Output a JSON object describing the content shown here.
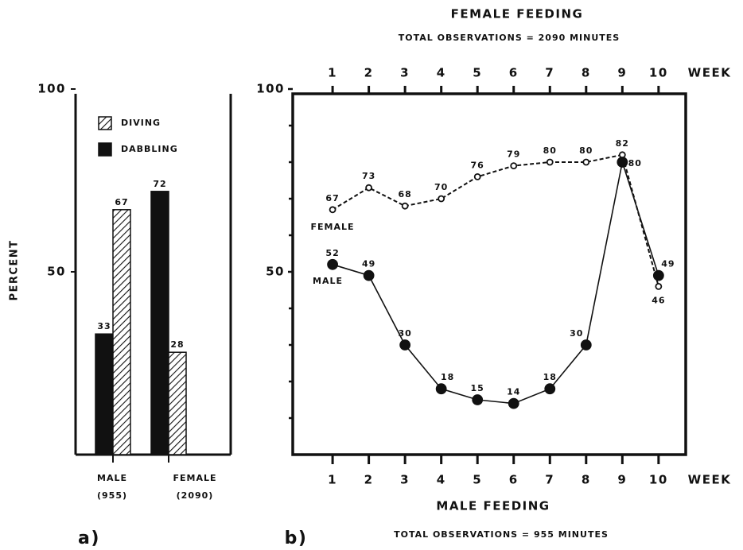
{
  "chart_data": [
    {
      "type": "bar",
      "ylabel": "PERCENT",
      "panel": "a)",
      "categories": [
        [
          "MALE",
          "(955)"
        ],
        [
          "FEMALE",
          "(2090)"
        ]
      ],
      "series": [
        {
          "name": "DABBLING",
          "color": "#111111",
          "values": [
            33,
            72
          ]
        },
        {
          "name": "DIVING",
          "color": "hatch",
          "values": [
            67,
            28
          ]
        }
      ],
      "ylim": [
        0,
        100
      ],
      "yticks": [
        50,
        100
      ]
    },
    {
      "type": "line",
      "panel": "b)",
      "title": "FEMALE FEEDING",
      "subtitle": "TOTAL OBSERVATIONS = 2090 MINUTES",
      "xlabel": "MALE FEEDING",
      "xlabel_note": "TOTAL OBSERVATIONS = 955 MINUTES",
      "xunit": "WEEK",
      "x": [
        1,
        2,
        3,
        4,
        5,
        6,
        7,
        8,
        9,
        10
      ],
      "series": [
        {
          "name": "FEMALE",
          "color": "#111111",
          "style": "dashed",
          "marker": "open",
          "values": [
            67,
            73,
            68,
            70,
            76,
            79,
            80,
            80,
            82,
            46
          ]
        },
        {
          "name": "MALE",
          "color": "#111111",
          "style": "solid",
          "marker": "filled",
          "values": [
            52,
            49,
            30,
            18,
            15,
            14,
            18,
            30,
            80,
            49
          ]
        }
      ],
      "xlim": [
        -0.1,
        10.75
      ],
      "xticks": [
        1,
        2,
        3,
        4,
        5,
        6,
        7,
        8,
        9,
        10
      ],
      "ylim": [
        0,
        100
      ],
      "yticks": [
        50,
        100
      ],
      "minor_yticks": [
        10,
        20,
        30,
        40,
        60,
        70,
        80,
        90
      ]
    }
  ]
}
